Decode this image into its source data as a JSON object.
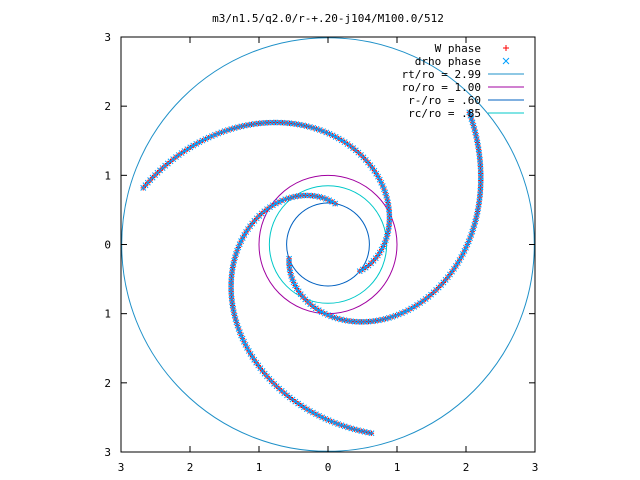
{
  "chart_data": {
    "type": "scatter",
    "title": "m3/n1.5/q2.0/r-+.20-j104/M100.0/512",
    "xlim": [
      -3,
      3
    ],
    "ylim": [
      -3,
      3
    ],
    "x_tick_labels": [
      "3",
      "2",
      "1",
      "0",
      "1",
      "2",
      "3"
    ],
    "y_tick_labels": [
      "3",
      "2",
      "1",
      "0",
      "1",
      "2",
      "3"
    ],
    "grid": false,
    "legend_position": "top-right",
    "series": [
      {
        "name": "W phase",
        "kind": "points",
        "marker": "+",
        "color": "#ff0000",
        "arms": [
          {
            "r0": 0.6,
            "phi0": 200,
            "k": 2.3,
            "dr": 0.02,
            "count": 111
          },
          {
            "r0": 0.6,
            "phi0": 320,
            "k": 2.3,
            "dr": 0.02,
            "count": 111
          },
          {
            "r0": 0.6,
            "phi0": 80,
            "k": 2.3,
            "dr": 0.02,
            "count": 111
          }
        ]
      },
      {
        "name": "drho phase",
        "kind": "points",
        "marker": "x",
        "color": "#00a0ff",
        "arms": [
          {
            "r0": 0.6,
            "phi0": 200,
            "k": 2.3,
            "dr": 0.02,
            "count": 111
          },
          {
            "r0": 0.6,
            "phi0": 320,
            "k": 2.3,
            "dr": 0.02,
            "count": 111
          },
          {
            "r0": 0.6,
            "phi0": 80,
            "k": 2.3,
            "dr": 0.02,
            "count": 111
          }
        ]
      },
      {
        "name": "rt/ro = 2.99",
        "kind": "circle",
        "radius": 2.99,
        "color": "#1e90c8"
      },
      {
        "name": "ro/ro = 1.00",
        "kind": "circle",
        "radius": 1.0,
        "color": "#a000a0"
      },
      {
        "name": "r-/ro = .60",
        "kind": "circle",
        "radius": 0.6,
        "color": "#0060c0"
      },
      {
        "name": "rc/ro = .85",
        "kind": "circle",
        "radius": 0.85,
        "color": "#00c8c8"
      }
    ]
  }
}
